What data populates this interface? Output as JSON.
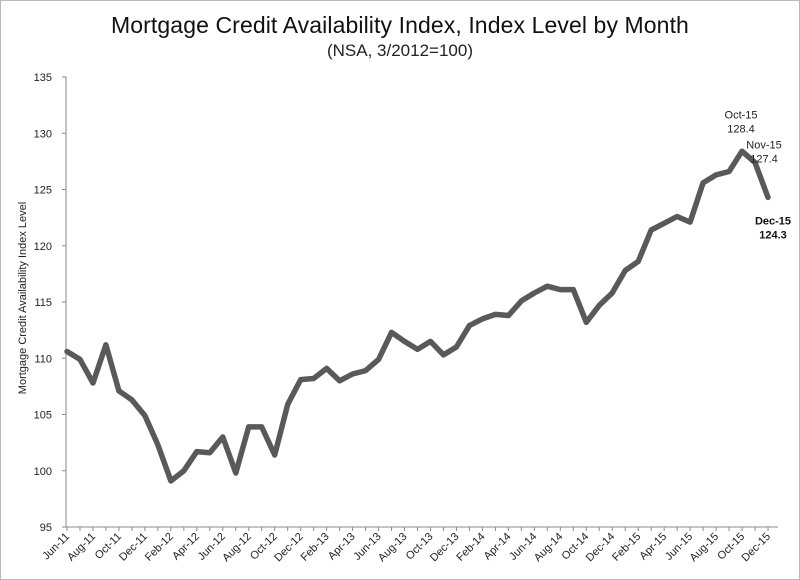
{
  "chart_data": {
    "type": "line",
    "title": "Mortgage Credit Availability Index, Index Level by Month",
    "subtitle": "(NSA, 3/2012=100)",
    "xlabel": "",
    "ylabel": "Mortgage Credit Availability Index Level",
    "ylim": [
      95,
      135
    ],
    "yticks": [
      95,
      100,
      105,
      110,
      115,
      120,
      125,
      130,
      135
    ],
    "grid": false,
    "line_color": "#595959",
    "x_tick_labels": [
      "Jun-11",
      "Aug-11",
      "Oct-11",
      "Dec-11",
      "Feb-12",
      "Apr-12",
      "Jun-12",
      "Aug-12",
      "Oct-12",
      "Dec-12",
      "Feb-13",
      "Apr-13",
      "Jun-13",
      "Aug-13",
      "Oct-13",
      "Dec-13",
      "Feb-14",
      "Apr-14",
      "Jun-14",
      "Aug-14",
      "Oct-14",
      "Dec-14",
      "Feb-15",
      "Apr-15",
      "Jun-15",
      "Aug-15",
      "Oct-15",
      "Dec-15"
    ],
    "x": [
      "Jun-11",
      "Jul-11",
      "Aug-11",
      "Sep-11",
      "Oct-11",
      "Nov-11",
      "Dec-11",
      "Jan-12",
      "Feb-12",
      "Mar-12",
      "Apr-12",
      "May-12",
      "Jun-12",
      "Jul-12",
      "Aug-12",
      "Sep-12",
      "Oct-12",
      "Nov-12",
      "Dec-12",
      "Jan-13",
      "Feb-13",
      "Mar-13",
      "Apr-13",
      "May-13",
      "Jun-13",
      "Jul-13",
      "Aug-13",
      "Sep-13",
      "Oct-13",
      "Nov-13",
      "Dec-13",
      "Jan-14",
      "Feb-14",
      "Mar-14",
      "Apr-14",
      "May-14",
      "Jun-14",
      "Jul-14",
      "Aug-14",
      "Sep-14",
      "Oct-14",
      "Nov-14",
      "Dec-14",
      "Jan-15",
      "Feb-15",
      "Mar-15",
      "Apr-15",
      "May-15",
      "Jun-15",
      "Jul-15",
      "Aug-15",
      "Sep-15",
      "Oct-15",
      "Nov-15",
      "Dec-15"
    ],
    "series": [
      {
        "values": [
          110.6,
          109.9,
          107.8,
          111.2,
          107.1,
          106.3,
          104.9,
          102.3,
          99.1,
          100.0,
          101.7,
          101.6,
          103.0,
          99.8,
          103.9,
          103.9,
          101.4,
          105.9,
          108.1,
          108.2,
          109.1,
          108.0,
          108.6,
          108.9,
          109.9,
          112.3,
          111.5,
          110.8,
          111.5,
          110.3,
          111.0,
          112.9,
          113.5,
          113.9,
          113.8,
          115.1,
          115.8,
          116.4,
          116.1,
          116.1,
          113.2,
          114.7,
          115.8,
          117.8,
          118.6,
          121.4,
          122.0,
          122.6,
          122.1,
          125.6,
          126.3,
          126.6,
          128.4,
          127.4,
          124.3
        ]
      }
    ],
    "annotations": [
      {
        "month": "Oct-15",
        "label": "Oct-15",
        "value": "128.4",
        "bold": false
      },
      {
        "month": "Nov-15",
        "label": "Nov-15",
        "value": "127.4",
        "bold": false
      },
      {
        "month": "Dec-15",
        "label": "Dec-15",
        "value": "124.3",
        "bold": true
      }
    ]
  }
}
